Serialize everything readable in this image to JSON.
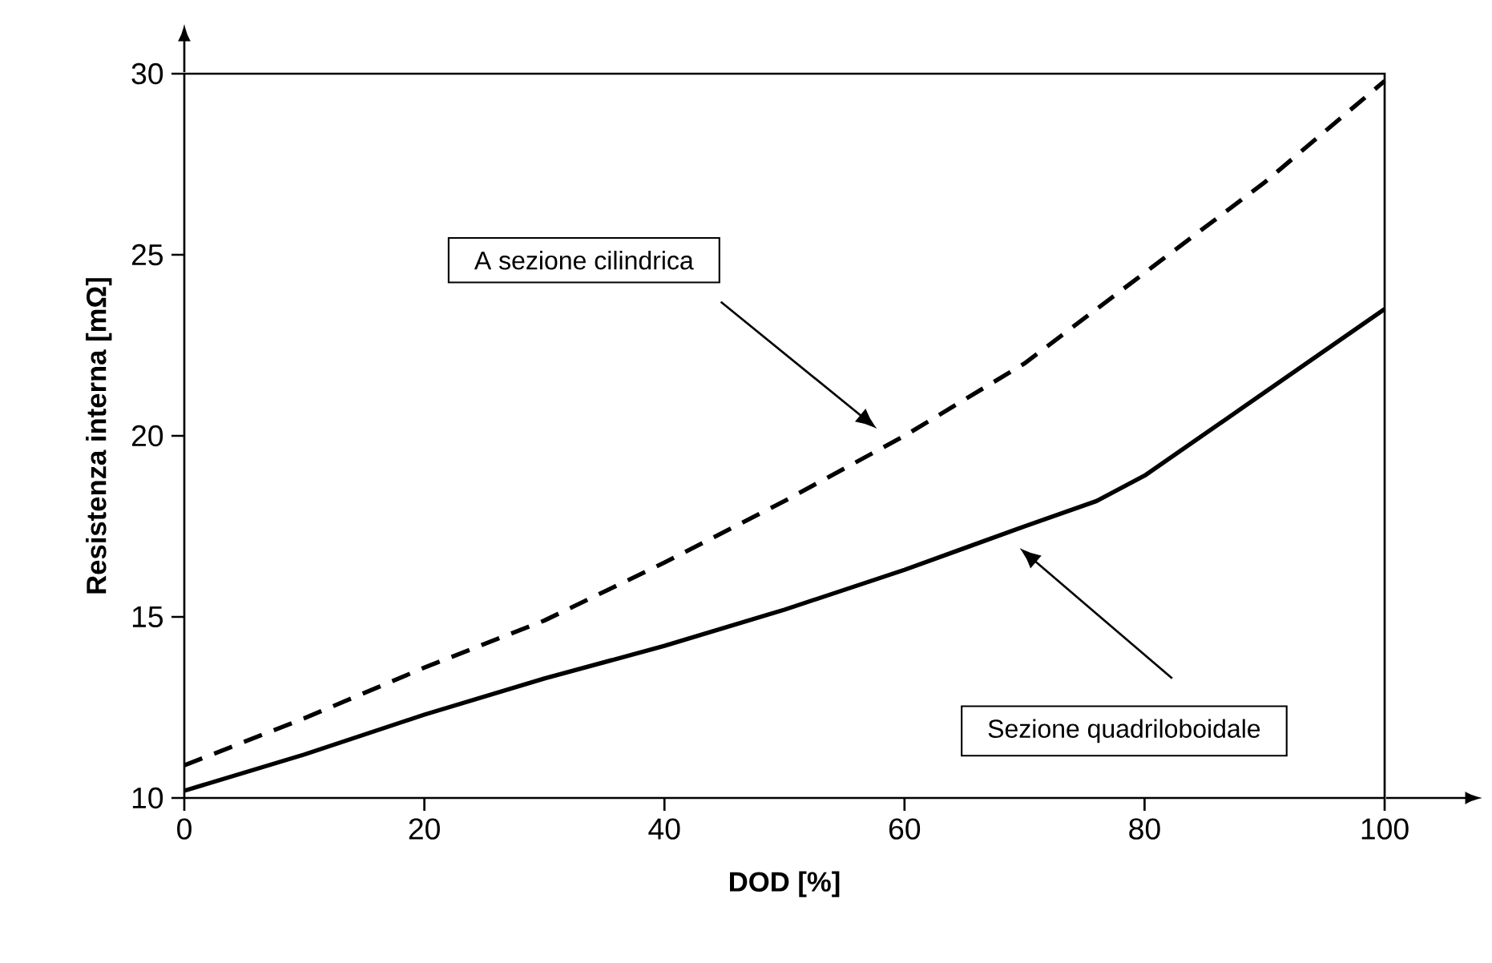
{
  "chart_data": {
    "type": "line",
    "xlabel": "DOD [%]",
    "ylabel": "Resistenza interna [mΩ]",
    "x": [
      0,
      10,
      20,
      30,
      40,
      50,
      60,
      65,
      70,
      76,
      80,
      90,
      100
    ],
    "series": [
      {
        "color": "#000000",
        "line_style": "dashed",
        "values": [
          10.9,
          12.2,
          13.6,
          14.9,
          16.5,
          18.2,
          20.0,
          21.0,
          22.0,
          23.5,
          24.5,
          27.0,
          29.8
        ]
      },
      {
        "color": "#000000",
        "line_style": "solid",
        "values": [
          10.2,
          11.2,
          12.3,
          13.3,
          14.2,
          15.2,
          16.3,
          16.9,
          17.5,
          18.2,
          18.9,
          21.2,
          23.5
        ]
      }
    ],
    "xlim": [
      0,
      100
    ],
    "ylim": [
      10,
      30
    ],
    "xticks": [
      0,
      20,
      40,
      60,
      80,
      100
    ],
    "yticks": [
      10,
      15,
      20,
      25,
      30
    ],
    "marker": "none",
    "annotations": [
      "A sezione cilindrica",
      "Sezione quadriloboidale"
    ]
  }
}
